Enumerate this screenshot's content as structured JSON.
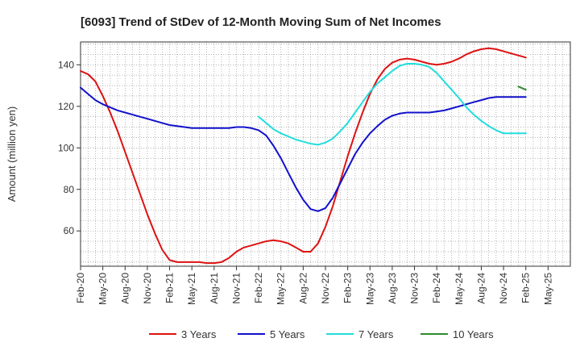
{
  "chart_data": {
    "type": "line",
    "title": "[6093]  Trend of StDev of 12-Month Moving Sum of Net Incomes",
    "xlabel": "",
    "ylabel": "Amount (million yen)",
    "ylim": [
      43,
      151
    ],
    "yticks": [
      60,
      80,
      100,
      120,
      140
    ],
    "x_tick_labels": [
      "Feb-20",
      "May-20",
      "Aug-20",
      "Nov-20",
      "Feb-21",
      "May-21",
      "Aug-21",
      "Nov-21",
      "Feb-22",
      "May-22",
      "Aug-22",
      "Nov-22",
      "Feb-23",
      "May-23",
      "Aug-23",
      "Nov-23",
      "Feb-24",
      "May-24",
      "Aug-24",
      "Nov-24",
      "Feb-25",
      "May-25"
    ],
    "x_months": [
      "2020-02",
      "2020-03",
      "2020-04",
      "2020-05",
      "2020-06",
      "2020-07",
      "2020-08",
      "2020-09",
      "2020-10",
      "2020-11",
      "2020-12",
      "2021-01",
      "2021-02",
      "2021-03",
      "2021-04",
      "2021-05",
      "2021-06",
      "2021-07",
      "2021-08",
      "2021-09",
      "2021-10",
      "2021-11",
      "2021-12",
      "2022-01",
      "2022-02",
      "2022-03",
      "2022-04",
      "2022-05",
      "2022-06",
      "2022-07",
      "2022-08",
      "2022-09",
      "2022-10",
      "2022-11",
      "2022-12",
      "2023-01",
      "2023-02",
      "2023-03",
      "2023-04",
      "2023-05",
      "2023-06",
      "2023-07",
      "2023-08",
      "2023-09",
      "2023-10",
      "2023-11",
      "2023-12",
      "2024-01",
      "2024-02",
      "2024-03",
      "2024-04",
      "2024-05",
      "2024-06",
      "2024-07",
      "2024-08",
      "2024-09",
      "2024-10",
      "2024-11",
      "2024-12",
      "2025-01",
      "2025-02"
    ],
    "grid": true,
    "legend_position": "bottom",
    "series": [
      {
        "name": "3 Years",
        "color": "#dd1111",
        "values": [
          137,
          135.5,
          132,
          125,
          117,
          108,
          98,
          88,
          78,
          68,
          59,
          51,
          46,
          45,
          45,
          45,
          45,
          44.5,
          44.5,
          45,
          47,
          50,
          52,
          53,
          54,
          55,
          55.5,
          55,
          54,
          52,
          50,
          50,
          54,
          62,
          72,
          84,
          96,
          107,
          117,
          126,
          133,
          138,
          141,
          142.5,
          143,
          142.5,
          141.5,
          140.5,
          140,
          140.5,
          141.5,
          143,
          145,
          146.5,
          147.5,
          148,
          147.5,
          146.5,
          145.5,
          144.5,
          143.5
        ]
      },
      {
        "name": "5 Years",
        "color": "#1111cc",
        "values": [
          129,
          126,
          123,
          121,
          119.5,
          118,
          117,
          116,
          115,
          114,
          113,
          112,
          111,
          110.5,
          110,
          109.5,
          109.5,
          109.5,
          109.5,
          109.5,
          109.5,
          110,
          110,
          109.5,
          108.5,
          106,
          101,
          95,
          88,
          81,
          75,
          70.5,
          69.5,
          71,
          76,
          83,
          90,
          97,
          102.5,
          107,
          110.5,
          113.5,
          115.5,
          116.5,
          117,
          117,
          117,
          117,
          117.5,
          118,
          119,
          120,
          121,
          122,
          123,
          124,
          124.5,
          124.5,
          124.5,
          124.5,
          124.5
        ]
      },
      {
        "name": "7 Years",
        "color": "#22dddd",
        "values": [
          null,
          null,
          null,
          null,
          null,
          null,
          null,
          null,
          null,
          null,
          null,
          null,
          null,
          null,
          null,
          null,
          null,
          null,
          null,
          null,
          null,
          null,
          null,
          null,
          115,
          112,
          109,
          107,
          105.5,
          104,
          103,
          102,
          101.5,
          102.5,
          104.5,
          108,
          112,
          117,
          122,
          127,
          131,
          134,
          137,
          139.5,
          140.5,
          140.5,
          140,
          139,
          136,
          132,
          128,
          124,
          119.5,
          116,
          113,
          110.5,
          108.5,
          107,
          107,
          107,
          107
        ]
      },
      {
        "name": "10 Years",
        "color": "#2e8b2e",
        "values": [
          null,
          null,
          null,
          null,
          null,
          null,
          null,
          null,
          null,
          null,
          null,
          null,
          null,
          null,
          null,
          null,
          null,
          null,
          null,
          null,
          null,
          null,
          null,
          null,
          null,
          null,
          null,
          null,
          null,
          null,
          null,
          null,
          null,
          null,
          null,
          null,
          null,
          null,
          null,
          null,
          null,
          null,
          null,
          null,
          null,
          null,
          null,
          null,
          null,
          null,
          null,
          null,
          null,
          null,
          null,
          null,
          null,
          null,
          null,
          129.5,
          128
        ]
      }
    ]
  }
}
